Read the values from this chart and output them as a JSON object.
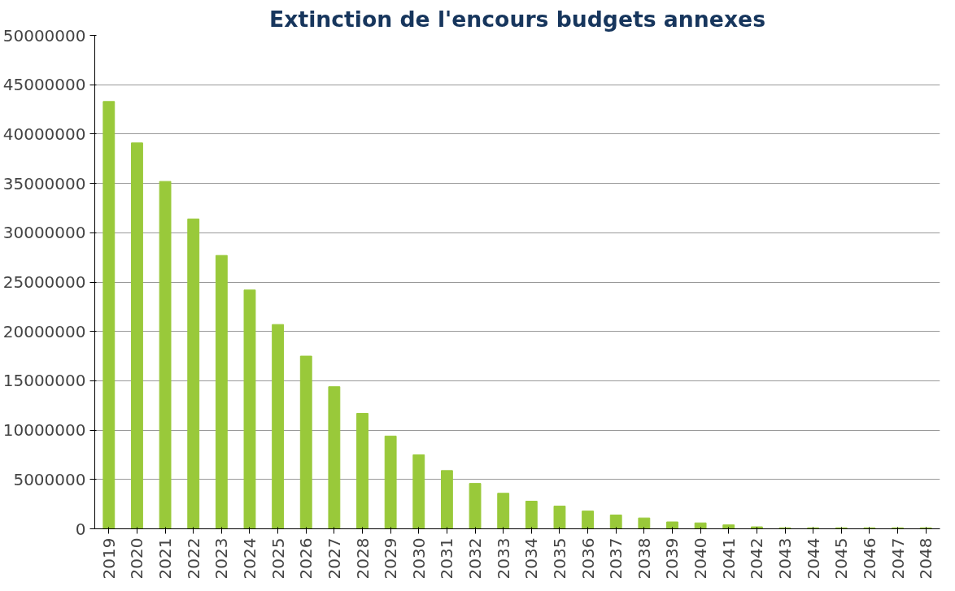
{
  "chart_data": {
    "type": "bar",
    "title": "Extinction de l'encours budgets annexes",
    "categories": [
      "2019",
      "2020",
      "2021",
      "2022",
      "2023",
      "2024",
      "2025",
      "2026",
      "2027",
      "2028",
      "2029",
      "2030",
      "2031",
      "2032",
      "2033",
      "2034",
      "2035",
      "2036",
      "2037",
      "2038",
      "2039",
      "2040",
      "2041",
      "2042",
      "2043",
      "2044",
      "2045",
      "2046",
      "2047",
      "2048"
    ],
    "values": [
      43300000,
      39100000,
      35200000,
      31400000,
      27700000,
      24200000,
      20700000,
      17500000,
      14400000,
      11700000,
      9400000,
      7500000,
      5900000,
      4600000,
      3600000,
      2800000,
      2300000,
      1800000,
      1400000,
      1100000,
      700000,
      600000,
      400000,
      200000,
      100000,
      100000,
      100000,
      100000,
      100000,
      100000
    ],
    "color": "#99c93a",
    "ylim": [
      0,
      50000000
    ],
    "yticks": [
      0,
      5000000,
      10000000,
      15000000,
      20000000,
      25000000,
      30000000,
      35000000,
      40000000,
      45000000,
      50000000
    ],
    "grid": "y"
  }
}
